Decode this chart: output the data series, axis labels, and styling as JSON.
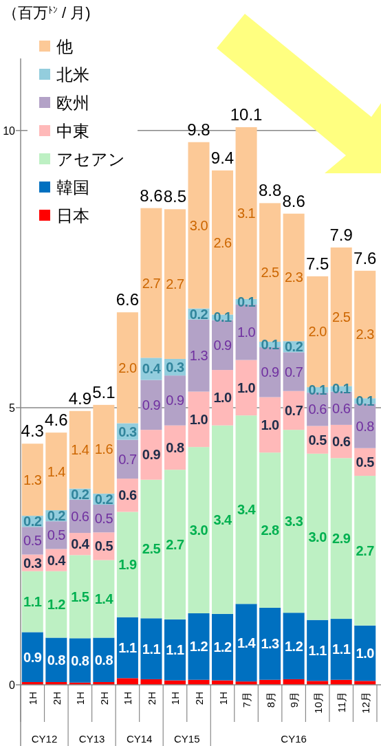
{
  "chart_data": {
    "type": "bar",
    "stacked": true,
    "ylabel": "（百万$^{ﾄﾝ}$ / 月)",
    "categories": [
      "1H",
      "2H",
      "1H",
      "2H",
      "1H",
      "2H",
      "1H",
      "2H",
      "1H",
      "7月",
      "8月",
      "9月",
      "10月",
      "11月",
      "12月"
    ],
    "series": [
      {
        "name": "日本",
        "color": "#ff0000",
        "values": [
          0.05,
          0.05,
          0.04,
          0.05,
          0.12,
          0.1,
          0.08,
          0.09,
          0.08,
          0.06,
          0.09,
          0.1,
          0.07,
          0.09,
          0.07
        ]
      },
      {
        "name": "韓国",
        "color": "#0070c0",
        "values": [
          0.9,
          0.8,
          0.8,
          0.8,
          1.1,
          1.1,
          1.1,
          1.2,
          1.2,
          1.4,
          1.3,
          1.2,
          1.1,
          1.1,
          1.0
        ],
        "value_labels": [
          "0.9",
          "0.8",
          "0.8",
          "0.8",
          "1.1",
          "1.1",
          "1.1",
          "1.2",
          "1.2",
          "1.4",
          "1.3",
          "1.2",
          "1.1",
          "1.1",
          "1.0"
        ]
      },
      {
        "name": "アセアン",
        "color": "#bdf0c3",
        "values": [
          1.1,
          1.2,
          1.5,
          1.4,
          1.9,
          2.5,
          2.7,
          3.0,
          3.4,
          3.4,
          2.8,
          3.3,
          3.0,
          2.9,
          2.7
        ],
        "value_labels": [
          "1.1",
          "1.2",
          "1.5",
          "1.4",
          "1.9",
          "2.5",
          "2.7",
          "3.0",
          "3.4",
          "3.4",
          "2.8",
          "3.3",
          "3.0",
          "2.9",
          "2.7"
        ]
      },
      {
        "name": "中東",
        "color": "#ffb9b9",
        "values": [
          0.3,
          0.4,
          0.4,
          0.5,
          0.6,
          0.9,
          0.8,
          1.0,
          1.0,
          1.0,
          1.0,
          0.7,
          0.5,
          0.6,
          0.5
        ],
        "value_labels": [
          "0.3",
          "0.4",
          "0.4",
          "0.5",
          "0.6",
          "0.9",
          "0.8",
          "1.0",
          "1.0",
          "1.0",
          "1.0",
          "0.7",
          "0.5",
          "0.6",
          "0.5"
        ]
      },
      {
        "name": "欧州",
        "color": "#b3a2c7",
        "values": [
          0.5,
          0.5,
          0.6,
          0.5,
          0.7,
          0.9,
          0.9,
          1.3,
          0.9,
          1.0,
          0.9,
          0.7,
          0.6,
          0.6,
          0.8
        ],
        "value_labels": [
          "0.5",
          "0.5",
          "0.6",
          "0.5",
          "0.7",
          "0.9",
          "0.9",
          "1.3",
          "0.9",
          "1.0",
          "0.9",
          "0.7",
          "0.6",
          "0.6",
          "0.8"
        ]
      },
      {
        "name": "北米",
        "color": "#93cddd",
        "values": [
          0.2,
          0.2,
          0.2,
          0.2,
          0.3,
          0.4,
          0.3,
          0.2,
          0.1,
          0.1,
          0.1,
          0.2,
          0.1,
          0.1,
          0.1
        ],
        "value_labels": [
          "0.2",
          "0.2",
          "0.2",
          "0.2",
          "0.3",
          "0.4",
          "0.3",
          "0.2",
          "0.1",
          "0.1",
          "0.1",
          "0.2",
          "0.1",
          "0.1",
          "0.1"
        ]
      },
      {
        "name": "他",
        "color": "#fcc997",
        "values": [
          1.3,
          1.4,
          1.4,
          1.6,
          2.0,
          2.7,
          2.7,
          3.0,
          2.6,
          3.1,
          2.5,
          2.3,
          2.0,
          2.5,
          2.3
        ],
        "value_labels": [
          "1.3",
          "1.4",
          "1.4",
          "1.6",
          "2.0",
          "2.7",
          "2.7",
          "3.0",
          "2.6",
          "3.1",
          "2.5",
          "2.3",
          "2.0",
          "2.5",
          "2.3"
        ]
      }
    ],
    "totals": [
      "4.3",
      "4.6",
      "4.9",
      "5.1",
      "6.6",
      "8.6",
      "8.5",
      "9.8",
      "9.4",
      "10.1",
      "8.8",
      "8.6",
      "7.5",
      "7.9",
      "7.6"
    ],
    "annotations": [
      "CY12",
      "CY13",
      "CY14",
      "CY15",
      "CY16"
    ],
    "ylim": [
      0,
      11.3
    ],
    "yticks": [
      0,
      5,
      10
    ],
    "grid": "y",
    "legend": "top left"
  }
}
